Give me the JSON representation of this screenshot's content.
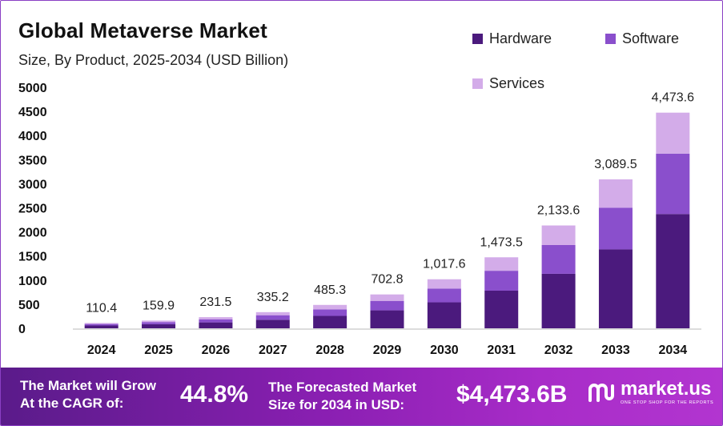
{
  "header": {
    "title": "Global Metaverse Market",
    "subtitle": "Size, By Product, 2025-2034 (USD Billion)"
  },
  "legend": [
    {
      "label": "Hardware",
      "color": "#4b1a7d"
    },
    {
      "label": "Software",
      "color": "#8a4fcc"
    },
    {
      "label": "Services",
      "color": "#d3ace9"
    }
  ],
  "chart_data": {
    "type": "bar",
    "stacked": true,
    "title": "Global Metaverse Market",
    "subtitle": "Size, By Product, 2025-2034 (USD Billion)",
    "categories": [
      "2024",
      "2025",
      "2026",
      "2027",
      "2028",
      "2029",
      "2030",
      "2031",
      "2032",
      "2033",
      "2034"
    ],
    "series": [
      {
        "name": "Hardware",
        "color": "#4b1a7d",
        "values": [
          58.5,
          84.7,
          122.7,
          177.7,
          257.2,
          372.5,
          539.3,
          781.0,
          1130.8,
          1637.4,
          2371.0
        ]
      },
      {
        "name": "Software",
        "color": "#8a4fcc",
        "values": [
          30.9,
          44.8,
          64.8,
          93.8,
          135.9,
          196.8,
          284.9,
          412.6,
          597.4,
          865.1,
          1252.6
        ]
      },
      {
        "name": "Services",
        "color": "#d3ace9",
        "values": [
          21.0,
          30.4,
          44.0,
          63.7,
          92.2,
          133.5,
          193.4,
          279.9,
          405.4,
          587.0,
          850.0
        ]
      }
    ],
    "totals": [
      110.4,
      159.9,
      231.5,
      335.2,
      485.3,
      702.8,
      1017.6,
      1473.5,
      2133.6,
      3089.5,
      4473.6
    ],
    "total_labels": [
      "110.4",
      "159.9",
      "231.5",
      "335.2",
      "485.3",
      "702.8",
      "1,017.6",
      "1,473.5",
      "2,133.6",
      "3,089.5",
      "4,473.6"
    ],
    "yticks": [
      0,
      500,
      1000,
      1500,
      2000,
      2500,
      3000,
      3500,
      4000,
      4500,
      5000
    ],
    "ylim": [
      0,
      5000
    ],
    "xlabel": "",
    "ylabel": "",
    "grid": false,
    "legend_position": "top-right"
  },
  "footer": {
    "cagr_label_line1": "The Market will Grow",
    "cagr_label_line2": "At the CAGR of:",
    "cagr_value": "44.8%",
    "forecast_label_line1": "The Forecasted Market",
    "forecast_label_line2": "Size for 2034 in USD:",
    "forecast_value": "$4,473.6B",
    "brand_name": "market.us",
    "brand_tagline": "ONE STOP SHOP FOR THE REPORTS"
  }
}
